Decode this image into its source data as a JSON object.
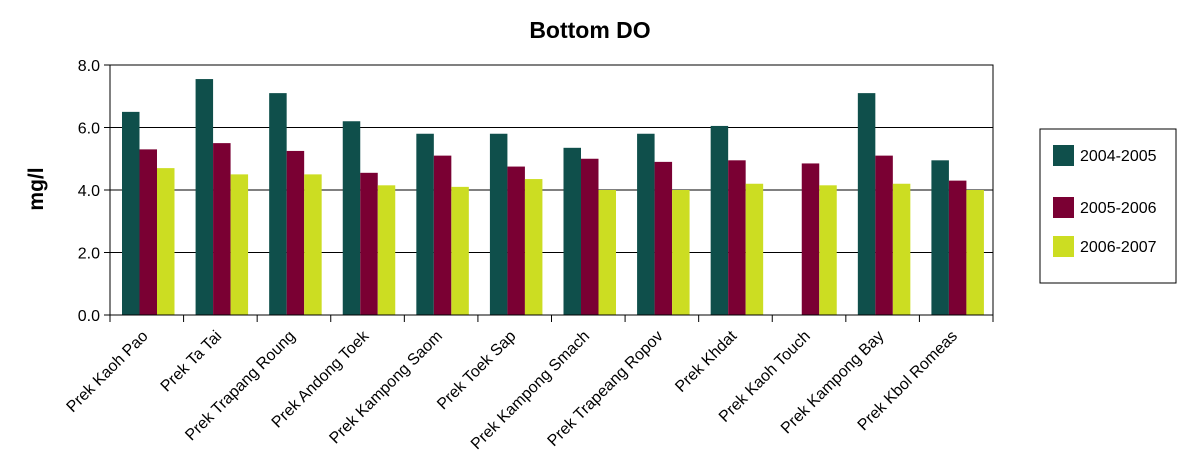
{
  "chart_data": {
    "type": "bar",
    "title": "Bottom DO",
    "xlabel": "",
    "ylabel": "mg/l",
    "ylim": [
      0,
      8
    ],
    "yticks": [
      "0.0",
      "2.0",
      "4.0",
      "6.0",
      "8.0"
    ],
    "grid": "horizontal",
    "legend_position": "right",
    "categories": [
      "Prek Kaoh Pao",
      "Prek Ta Tai",
      "Prek Trapang Roung",
      "Prek Andong Toek",
      "Prek Kampong Saom",
      "Prek Toek Sap",
      "Prek Kampong Smach",
      "Prek Trapeang Ropov",
      "Prek Khdat",
      "Prek Kaoh Touch",
      "Prek Kampong Bay",
      "Prek Kbol Romeas"
    ],
    "series": [
      {
        "name": "2004-2005",
        "color": "#0f4f4b",
        "values": [
          6.5,
          7.55,
          7.1,
          6.2,
          5.8,
          5.8,
          5.35,
          5.8,
          6.05,
          0,
          7.1,
          4.95
        ]
      },
      {
        "name": "2005-2006",
        "color": "#7a0033",
        "values": [
          5.3,
          5.5,
          5.25,
          4.55,
          5.1,
          4.75,
          5.0,
          4.9,
          4.95,
          4.85,
          5.1,
          4.3
        ]
      },
      {
        "name": "2006-2007",
        "color": "#ccdd22",
        "values": [
          4.7,
          4.5,
          4.5,
          4.15,
          4.1,
          4.35,
          4.0,
          4.0,
          4.2,
          4.15,
          4.2,
          4.0
        ]
      }
    ]
  }
}
